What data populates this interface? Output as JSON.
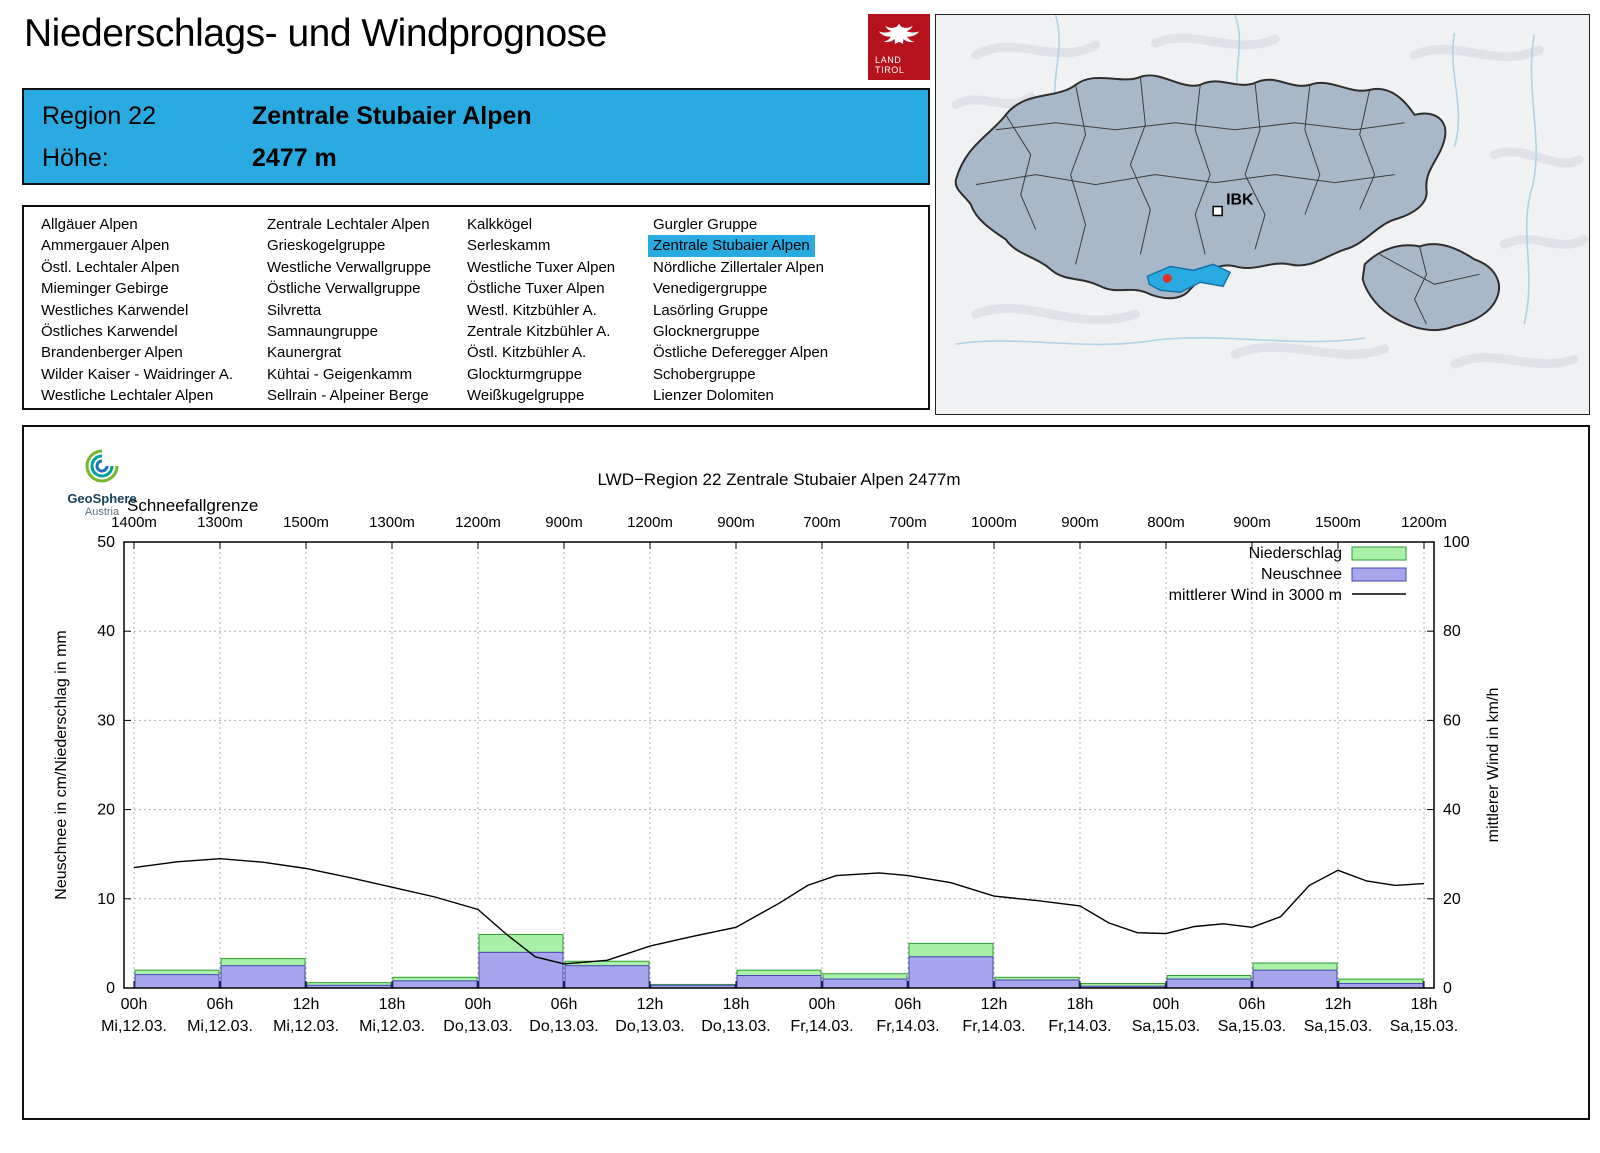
{
  "page": {
    "title": "Niederschlags- und Windprognose"
  },
  "logo": {
    "line1": "LAND",
    "line2": "TIROL"
  },
  "region_header": {
    "region_label": "Region 22",
    "region_name": "Zentrale Stubaier Alpen",
    "hoehe_label": "Höhe:",
    "hoehe_value": "2477 m"
  },
  "map": {
    "marker_label": "IBK"
  },
  "region_list": {
    "selected": "Zentrale Stubaier Alpen",
    "columns": [
      [
        "Allgäuer Alpen",
        "Ammergauer Alpen",
        "Östl. Lechtaler Alpen",
        "Mieminger Gebirge",
        "Westliches Karwendel",
        "Östliches Karwendel",
        "Brandenberger Alpen",
        "Wilder Kaiser - Waidringer A.",
        "Westliche Lechtaler Alpen"
      ],
      [
        "Zentrale Lechtaler Alpen",
        "Grieskogelgruppe",
        "Westliche Verwallgruppe",
        "Östliche Verwallgruppe",
        "Silvretta",
        "Samnaungruppe",
        "Kaunergrat",
        "Kühtai - Geigenkamm",
        "Sellrain - Alpeiner Berge"
      ],
      [
        "Kalkkögel",
        "Serleskamm",
        "Westliche Tuxer Alpen",
        "Östliche Tuxer Alpen",
        "Westl. Kitzbühler A.",
        "Zentrale Kitzbühler A.",
        "Östl. Kitzbühler A.",
        "Glockturmgruppe",
        "Weißkugelgruppe"
      ],
      [
        "Gurgler Gruppe",
        "Zentrale Stubaier Alpen",
        "Nördliche Zillertaler Alpen",
        "Venedigergruppe",
        "Lasörling Gruppe",
        "Glocknergruppe",
        "Östliche Deferegger Alpen",
        "Schobergruppe",
        "Lienzer Dolomiten"
      ]
    ]
  },
  "geosphere": {
    "name": "GeoSphere",
    "sub": "Austria"
  },
  "colors": {
    "accent": "#29abe2",
    "tirol_red": "#b5121b",
    "niederschlag_fill": "#a9f0a9",
    "niederschlag_border": "#2f9e2f",
    "neuschnee_fill": "#a6a6ec",
    "neuschnee_border": "#4646b4",
    "wind_line": "#000000",
    "map_region_fill": "#a9b8c8",
    "map_highlight": "#29abe2",
    "marker_red": "#e03127"
  },
  "chart_data": {
    "type": "bar",
    "title": "LWD−Region 22 Zentrale Stubaier Alpen 2477m",
    "snowline_label": "Schneefallgrenze",
    "snowline_values": [
      "1400m",
      "1300m",
      "1500m",
      "1300m",
      "1200m",
      "900m",
      "1200m",
      "900m",
      "700m",
      "700m",
      "1000m",
      "900m",
      "800m",
      "900m",
      "1500m",
      "1200m"
    ],
    "ylabel_left": "Neuschnee in cm/Niederschlag in mm",
    "ylabel_right": "mittlerer Wind in km/h",
    "ylim_left": [
      0,
      50
    ],
    "ylim_right": [
      0,
      100
    ],
    "yticks_left": [
      0,
      10,
      20,
      30,
      40,
      50
    ],
    "yticks_right": [
      0,
      20,
      40,
      60,
      80,
      100
    ],
    "grid": "dotted",
    "legend_position": "top-right",
    "legend": [
      {
        "label": "Niederschlag",
        "type": "box"
      },
      {
        "label": "Neuschnee",
        "type": "box"
      },
      {
        "label": "mittlerer Wind in 3000 m",
        "type": "line"
      }
    ],
    "x_ticks": [
      {
        "hour": "00h",
        "date": "Mi,12.03."
      },
      {
        "hour": "06h",
        "date": "Mi,12.03."
      },
      {
        "hour": "12h",
        "date": "Mi,12.03."
      },
      {
        "hour": "18h",
        "date": "Mi,12.03."
      },
      {
        "hour": "00h",
        "date": "Do,13.03."
      },
      {
        "hour": "06h",
        "date": "Do,13.03."
      },
      {
        "hour": "12h",
        "date": "Do,13.03."
      },
      {
        "hour": "18h",
        "date": "Do,13.03."
      },
      {
        "hour": "00h",
        "date": "Fr,14.03."
      },
      {
        "hour": "06h",
        "date": "Fr,14.03."
      },
      {
        "hour": "12h",
        "date": "Fr,14.03."
      },
      {
        "hour": "18h",
        "date": "Fr,14.03."
      },
      {
        "hour": "00h",
        "date": "Sa,15.03."
      },
      {
        "hour": "06h",
        "date": "Sa,15.03."
      },
      {
        "hour": "12h",
        "date": "Sa,15.03."
      },
      {
        "hour": "18h",
        "date": "Sa,15.03."
      }
    ],
    "series": {
      "niederschlag_mm": [
        2,
        3.3,
        0.6,
        1.2,
        6,
        3,
        0.4,
        2,
        1.6,
        5,
        1.2,
        0.5,
        1.4,
        2.8,
        1
      ],
      "neuschnee_cm": [
        1.5,
        2.5,
        0.3,
        0.8,
        4,
        2.5,
        0.3,
        1.4,
        1,
        3.5,
        0.9,
        0.2,
        1,
        2,
        0.5
      ],
      "wind_kmh": [
        [
          0,
          27
        ],
        [
          3,
          28.3
        ],
        [
          6,
          29
        ],
        [
          9,
          28.2
        ],
        [
          12,
          26.8
        ],
        [
          15,
          24.8
        ],
        [
          18,
          22.6
        ],
        [
          21,
          20.4
        ],
        [
          24,
          17.6
        ],
        [
          26,
          12
        ],
        [
          28,
          7
        ],
        [
          30,
          5.4
        ],
        [
          33,
          6.2
        ],
        [
          36,
          9.4
        ],
        [
          39,
          11.6
        ],
        [
          42,
          13.6
        ],
        [
          45,
          19
        ],
        [
          47,
          23
        ],
        [
          49,
          25.2
        ],
        [
          52,
          25.8
        ],
        [
          54,
          25.2
        ],
        [
          57,
          23.6
        ],
        [
          60,
          20.6
        ],
        [
          63,
          19.6
        ],
        [
          66,
          18.4
        ],
        [
          68,
          14.6
        ],
        [
          70,
          12.4
        ],
        [
          72,
          12.2
        ],
        [
          74,
          13.8
        ],
        [
          76,
          14.4
        ],
        [
          78,
          13.6
        ],
        [
          80,
          16
        ],
        [
          82,
          23
        ],
        [
          84,
          26.4
        ],
        [
          86,
          24
        ],
        [
          88,
          23
        ],
        [
          90,
          23.4
        ]
      ]
    }
  }
}
